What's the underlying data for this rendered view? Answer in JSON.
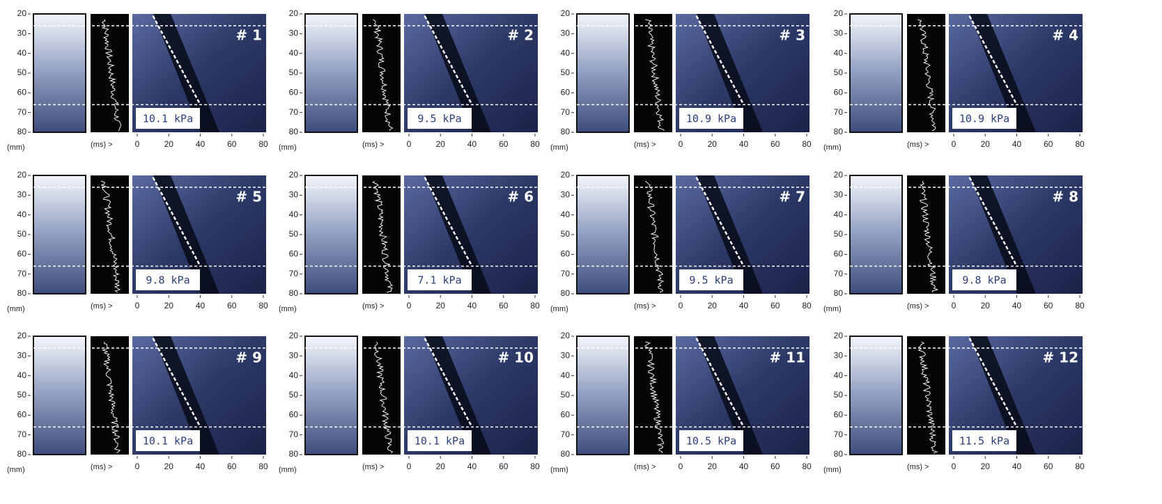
{
  "y_axis": {
    "unit": "(mm)",
    "ticks": [
      20,
      30,
      40,
      50,
      60,
      70,
      80
    ]
  },
  "x_axis": {
    "unit": "(ms) >",
    "ticks": [
      0,
      20,
      40,
      60,
      80
    ]
  },
  "panels": [
    {
      "label": "# 1",
      "stiffness": "10.1 kPa"
    },
    {
      "label": "# 2",
      "stiffness": "9.5 kPa"
    },
    {
      "label": "# 3",
      "stiffness": "10.9 kPa"
    },
    {
      "label": "# 4",
      "stiffness": "10.9 kPa"
    },
    {
      "label": "# 5",
      "stiffness": "9.8 kPa"
    },
    {
      "label": "# 6",
      "stiffness": "7.1 kPa"
    },
    {
      "label": "# 7",
      "stiffness": "9.5 kPa"
    },
    {
      "label": "# 8",
      "stiffness": "9.8 kPa"
    },
    {
      "label": "# 9",
      "stiffness": "10.1 kPa"
    },
    {
      "label": "# 10",
      "stiffness": "10.1 kPa"
    },
    {
      "label": "# 11",
      "stiffness": "10.5 kPa"
    },
    {
      "label": "# 12",
      "stiffness": "11.5 kPa"
    }
  ]
}
